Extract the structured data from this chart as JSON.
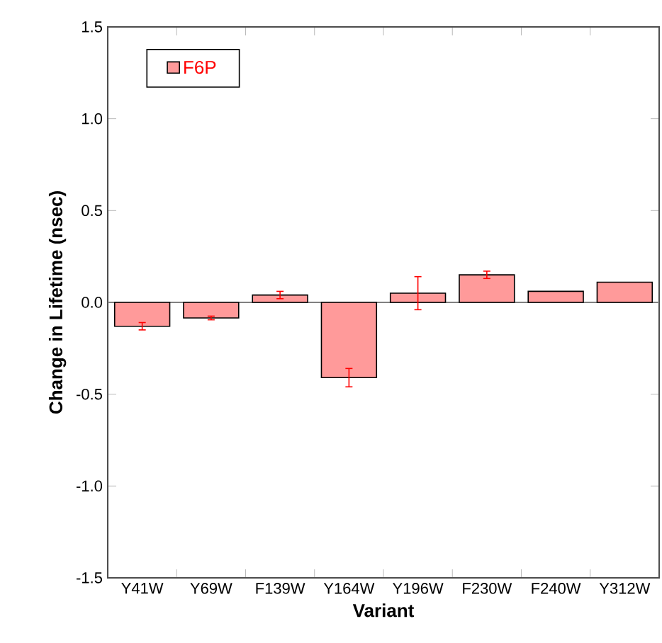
{
  "chart_data": {
    "type": "bar",
    "xlabel": "Variant",
    "ylabel": "Change in Lifetime (nsec)",
    "categories": [
      "Y41W",
      "Y69W",
      "F139W",
      "Y164W",
      "Y196W",
      "F230W",
      "F240W",
      "Y312W"
    ],
    "series": [
      {
        "name": "F6P",
        "color": "#ff9a9a",
        "values": [
          -0.13,
          -0.085,
          0.04,
          -0.41,
          0.05,
          0.15,
          0.06,
          0.11
        ],
        "errors": [
          0.02,
          0.01,
          0.02,
          0.05,
          0.09,
          0.02,
          null,
          null
        ]
      }
    ],
    "ylim": [
      -1.5,
      1.5
    ],
    "yticks": [
      {
        "value": 1.5,
        "label": "1.5"
      },
      {
        "value": 1.0,
        "label": "1.0"
      },
      {
        "value": 0.5,
        "label": "0.5"
      },
      {
        "value": 0.0,
        "label": "0.0"
      },
      {
        "value": -0.5,
        "label": "-0.5"
      },
      {
        "value": -1.0,
        "label": "-1.0"
      },
      {
        "value": -1.5,
        "label": "-1.5"
      }
    ],
    "ref_lines": [
      {
        "axis": "y",
        "value": 0,
        "color": "#808080"
      }
    ],
    "legend": "top left",
    "grid": false
  }
}
